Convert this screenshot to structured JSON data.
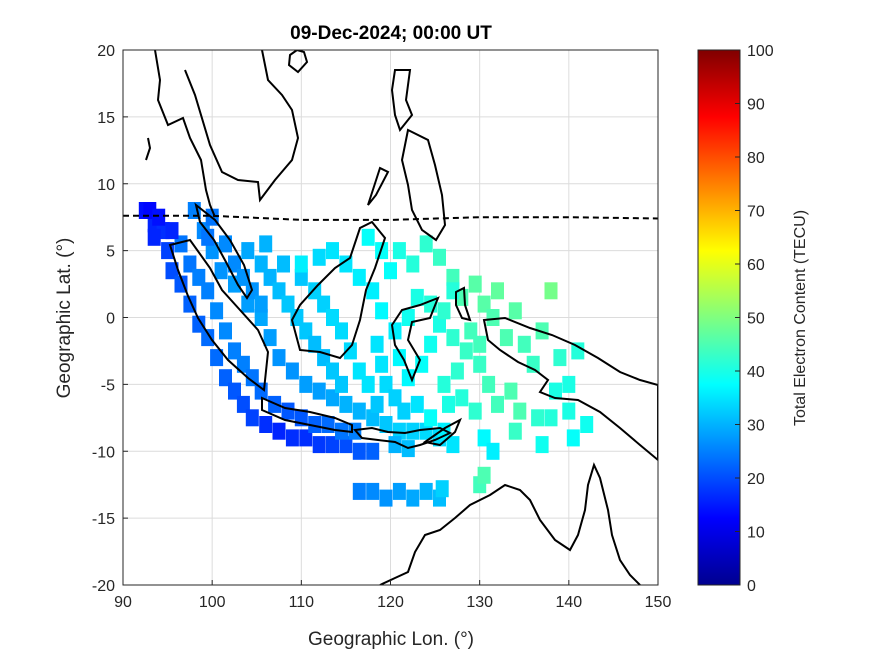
{
  "chart_data": {
    "type": "heatmap",
    "title": "09-Dec-2024; 00:00 UT",
    "xlabel": "Geographic Lon. (°)",
    "ylabel": "Geographic Lat. (°)",
    "xlim": [
      90,
      150
    ],
    "ylim": [
      -20,
      20
    ],
    "xticks": [
      "90",
      "100",
      "110",
      "120",
      "130",
      "140",
      "150"
    ],
    "yticks": [
      "20",
      "15",
      "10",
      "5",
      "0",
      "-5",
      "-10",
      "-15",
      "-20"
    ],
    "grid": true,
    "colormap": "jet",
    "colorbar": {
      "label": "Total Electron Content (TECU)",
      "range": [
        0,
        100
      ],
      "ticks": [
        "0",
        "10",
        "20",
        "30",
        "40",
        "50",
        "60",
        "70",
        "80",
        "90",
        "100"
      ]
    },
    "magnetic_equator": [
      [
        90,
        7.6
      ],
      [
        100,
        7.6
      ],
      [
        110,
        7.3
      ],
      [
        120,
        7.3
      ],
      [
        130,
        7.5
      ],
      [
        140,
        7.5
      ],
      [
        150,
        7.4
      ]
    ],
    "cells": [
      [
        92.5,
        8.0,
        14
      ],
      [
        93.5,
        7.0,
        16
      ],
      [
        94.5,
        6.5,
        17
      ],
      [
        95.0,
        5.0,
        19
      ],
      [
        95.5,
        3.5,
        20
      ],
      [
        96.5,
        2.5,
        21
      ],
      [
        97.5,
        1.0,
        22
      ],
      [
        98.5,
        -0.5,
        22
      ],
      [
        99.5,
        -1.5,
        23
      ],
      [
        100.5,
        -3.0,
        23
      ],
      [
        101.5,
        -4.5,
        22
      ],
      [
        102.5,
        -5.5,
        21
      ],
      [
        103.5,
        -6.5,
        20
      ],
      [
        104.5,
        -7.5,
        19
      ],
      [
        106.0,
        -8.0,
        17
      ],
      [
        107.5,
        -8.5,
        16
      ],
      [
        109.0,
        -9.0,
        17
      ],
      [
        110.5,
        -9.0,
        17
      ],
      [
        112.0,
        -9.5,
        18
      ],
      [
        113.5,
        -9.5,
        19
      ],
      [
        115.0,
        -9.5,
        20
      ],
      [
        116.5,
        -10.0,
        21
      ],
      [
        118.0,
        -10.0,
        22
      ],
      [
        96.5,
        5.5,
        24
      ],
      [
        97.5,
        4.0,
        24
      ],
      [
        98.5,
        3.0,
        25
      ],
      [
        99.5,
        2.0,
        25
      ],
      [
        100.5,
        0.5,
        26
      ],
      [
        101.5,
        -1.0,
        26
      ],
      [
        102.5,
        -2.5,
        25
      ],
      [
        103.5,
        -3.5,
        25
      ],
      [
        104.5,
        -4.5,
        24
      ],
      [
        105.5,
        -5.5,
        23
      ],
      [
        107.0,
        -6.5,
        22
      ],
      [
        108.5,
        -7.0,
        21
      ],
      [
        110.0,
        -7.5,
        21
      ],
      [
        111.5,
        -8.0,
        22
      ],
      [
        113.0,
        -8.0,
        23
      ],
      [
        114.5,
        -8.5,
        24
      ],
      [
        116.0,
        -8.5,
        25
      ],
      [
        98.0,
        8.0,
        25
      ],
      [
        99.0,
        6.5,
        26
      ],
      [
        100.0,
        5.0,
        27
      ],
      [
        101.0,
        3.5,
        27
      ],
      [
        102.5,
        2.5,
        28
      ],
      [
        104.0,
        1.0,
        28
      ],
      [
        105.5,
        0.0,
        29
      ],
      [
        106.5,
        -1.5,
        28
      ],
      [
        107.5,
        -3.0,
        27
      ],
      [
        109.0,
        -4.0,
        27
      ],
      [
        110.5,
        -5.0,
        28
      ],
      [
        112.0,
        -5.5,
        28
      ],
      [
        113.5,
        -6.0,
        29
      ],
      [
        115.0,
        -6.5,
        30
      ],
      [
        116.5,
        -7.0,
        30
      ],
      [
        118.0,
        -7.5,
        31
      ],
      [
        119.5,
        -8.0,
        32
      ],
      [
        121.0,
        -8.5,
        33
      ],
      [
        122.5,
        -8.5,
        33
      ],
      [
        124.0,
        -8.5,
        34
      ],
      [
        125.5,
        -9.0,
        34
      ],
      [
        127.0,
        -9.5,
        35
      ],
      [
        120.5,
        -9.5,
        30
      ],
      [
        122.0,
        -9.8,
        31
      ],
      [
        104.0,
        5.0,
        29
      ],
      [
        105.5,
        4.0,
        30
      ],
      [
        106.5,
        3.0,
        30
      ],
      [
        107.5,
        2.0,
        31
      ],
      [
        108.5,
        1.0,
        32
      ],
      [
        109.5,
        0.0,
        32
      ],
      [
        110.5,
        -1.0,
        32
      ],
      [
        111.5,
        -2.0,
        31
      ],
      [
        112.5,
        -3.0,
        31
      ],
      [
        113.5,
        -4.0,
        32
      ],
      [
        114.5,
        -5.0,
        32
      ],
      [
        106.0,
        5.5,
        30
      ],
      [
        108.0,
        4.0,
        31
      ],
      [
        110.0,
        3.0,
        32
      ],
      [
        111.5,
        2.0,
        33
      ],
      [
        112.5,
        1.0,
        33
      ],
      [
        113.5,
        0.0,
        34
      ],
      [
        114.5,
        -1.0,
        34
      ],
      [
        115.5,
        -2.5,
        34
      ],
      [
        116.5,
        -4.0,
        35
      ],
      [
        117.5,
        -5.0,
        35
      ],
      [
        112.0,
        4.5,
        34
      ],
      [
        113.5,
        5.0,
        35
      ],
      [
        115.0,
        4.0,
        35
      ],
      [
        116.5,
        3.0,
        36
      ],
      [
        118.0,
        2.0,
        36
      ],
      [
        119.0,
        0.5,
        37
      ],
      [
        117.5,
        6.0,
        38
      ],
      [
        119.0,
        5.0,
        38
      ],
      [
        120.0,
        3.5,
        38
      ],
      [
        110.0,
        4.0,
        36
      ],
      [
        120.5,
        -1.0,
        36
      ],
      [
        121.0,
        -3.0,
        37
      ],
      [
        122.0,
        -4.5,
        37
      ],
      [
        123.5,
        -3.5,
        38
      ],
      [
        124.5,
        -2.0,
        39
      ],
      [
        125.5,
        -0.5,
        40
      ],
      [
        126.0,
        -5.0,
        41
      ],
      [
        127.5,
        -4.0,
        42
      ],
      [
        128.5,
        -2.5,
        43
      ],
      [
        130.0,
        -3.5,
        43
      ],
      [
        131.0,
        -5.0,
        44
      ],
      [
        132.0,
        -6.5,
        44
      ],
      [
        133.5,
        -5.5,
        45
      ],
      [
        134.5,
        -7.0,
        45
      ],
      [
        121.0,
        5.0,
        40
      ],
      [
        122.5,
        4.0,
        41
      ],
      [
        124.0,
        5.5,
        42
      ],
      [
        125.5,
        4.5,
        43
      ],
      [
        127.0,
        3.0,
        44
      ],
      [
        128.0,
        1.5,
        45
      ],
      [
        129.5,
        2.5,
        46
      ],
      [
        130.5,
        1.0,
        46
      ],
      [
        131.5,
        0.0,
        45
      ],
      [
        132.0,
        2.0,
        47
      ],
      [
        133.0,
        -1.5,
        45
      ],
      [
        134.0,
        0.5,
        46
      ],
      [
        135.0,
        -2.0,
        44
      ],
      [
        136.0,
        -3.5,
        43
      ],
      [
        137.0,
        -1.0,
        45
      ],
      [
        138.0,
        2.0,
        49
      ],
      [
        139.0,
        -3.0,
        42
      ],
      [
        140.0,
        -5.0,
        40
      ],
      [
        141.0,
        -2.5,
        41
      ],
      [
        138.5,
        -5.5,
        40
      ],
      [
        136.5,
        -7.5,
        42
      ],
      [
        138.0,
        -7.5,
        41
      ],
      [
        140.0,
        -7.0,
        40
      ],
      [
        142.0,
        -8.0,
        39
      ],
      [
        140.5,
        -9.0,
        38
      ],
      [
        137.0,
        -9.5,
        39
      ],
      [
        134.0,
        -8.5,
        43
      ],
      [
        129.5,
        -7.0,
        42
      ],
      [
        128.0,
        -6.0,
        41
      ],
      [
        126.5,
        -6.5,
        40
      ],
      [
        126.0,
        -8.5,
        36
      ],
      [
        124.5,
        -7.5,
        38
      ],
      [
        130.5,
        -9.0,
        37
      ],
      [
        131.5,
        -10.0,
        36
      ],
      [
        127.0,
        2.0,
        41
      ],
      [
        116.5,
        -13.0,
        25
      ],
      [
        118.0,
        -13.0,
        26
      ],
      [
        119.5,
        -13.5,
        27
      ],
      [
        121.0,
        -13.0,
        28
      ],
      [
        122.5,
        -13.5,
        29
      ],
      [
        124.0,
        -13.0,
        30
      ],
      [
        125.5,
        -13.5,
        31
      ],
      [
        125.8,
        -12.8,
        33
      ],
      [
        130.0,
        -12.5,
        44
      ],
      [
        130.5,
        -11.8,
        45
      ],
      [
        93.0,
        8.0,
        13
      ],
      [
        94.0,
        7.5,
        14
      ],
      [
        95.5,
        6.5,
        16
      ],
      [
        93.5,
        6.0,
        16
      ],
      [
        99.5,
        6.0,
        24
      ],
      [
        100.0,
        7.5,
        24
      ],
      [
        101.5,
        5.5,
        26
      ],
      [
        102.5,
        4.0,
        26
      ],
      [
        103.5,
        3.0,
        27
      ],
      [
        104.5,
        2.0,
        27
      ],
      [
        105.5,
        1.0,
        28
      ],
      [
        118.5,
        -2.0,
        35
      ],
      [
        119.0,
        -3.5,
        35
      ],
      [
        119.5,
        -5.0,
        34
      ],
      [
        120.5,
        -6.0,
        33
      ],
      [
        118.5,
        -6.5,
        32
      ],
      [
        121.5,
        -7.0,
        33
      ],
      [
        123.0,
        -6.5,
        35
      ],
      [
        122.0,
        0.0,
        39
      ],
      [
        123.0,
        1.5,
        40
      ],
      [
        124.5,
        1.0,
        41
      ],
      [
        126.0,
        0.5,
        42
      ],
      [
        127.0,
        -1.5,
        42
      ],
      [
        129.0,
        -1.0,
        44
      ],
      [
        130.0,
        -2.0,
        44
      ]
    ]
  }
}
